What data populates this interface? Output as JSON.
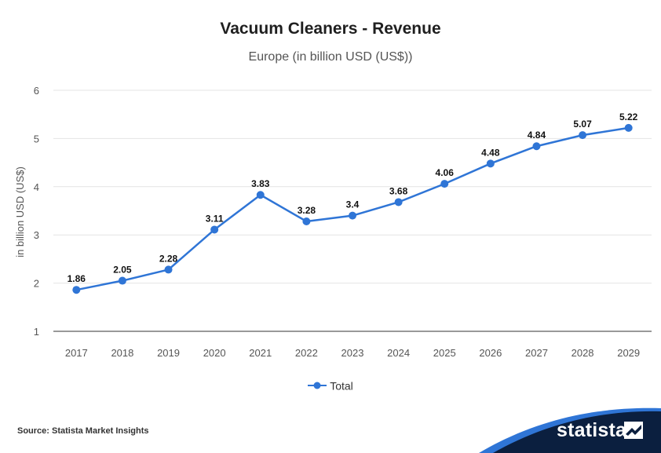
{
  "header": {
    "title": "Vacuum Cleaners - Revenue",
    "subtitle": "Europe (in billion USD (US$))"
  },
  "chart_data": {
    "type": "line",
    "title": "Vacuum Cleaners - Revenue",
    "subtitle": "Europe (in billion USD (US$))",
    "xlabel": "",
    "ylabel": "in billion USD (US$)",
    "categories": [
      "2017",
      "2018",
      "2019",
      "2020",
      "2021",
      "2022",
      "2023",
      "2024",
      "2025",
      "2026",
      "2027",
      "2028",
      "2029"
    ],
    "series": [
      {
        "name": "Total",
        "values": [
          1.86,
          2.05,
          2.28,
          3.11,
          3.83,
          3.28,
          3.4,
          3.68,
          4.06,
          4.48,
          4.84,
          5.07,
          5.22
        ],
        "labels": [
          "1.86",
          "2.05",
          "2.28",
          "3.11",
          "3.83",
          "3.28",
          "3.4",
          "3.68",
          "4.06",
          "4.48",
          "4.84",
          "5.07",
          "5.22"
        ],
        "color": "#2f75d6"
      }
    ],
    "ylim": [
      1,
      6
    ],
    "yticks": [
      "1",
      "2",
      "3",
      "4",
      "5",
      "6"
    ],
    "grid": true,
    "legend": "bottom-center"
  },
  "legend": {
    "label": "Total"
  },
  "footer": {
    "source": "Source: Statista Market Insights",
    "brand": "statista",
    "brand_color": "#0b1f3f",
    "accent_color": "#2f75d6"
  }
}
